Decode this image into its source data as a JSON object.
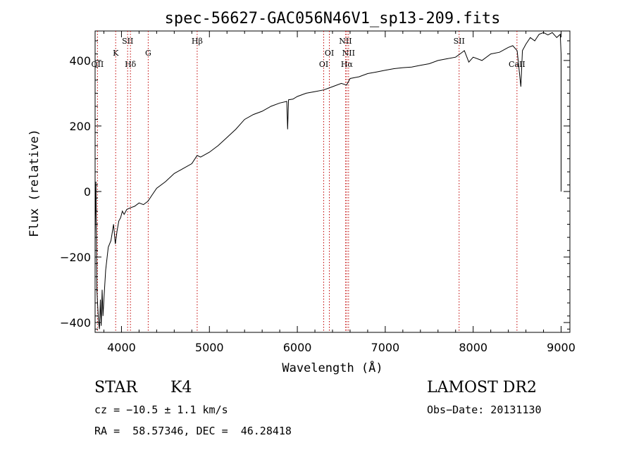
{
  "chart_data": {
    "type": "line",
    "title": "spec-56627-GAC056N46V1_sp13-209.fits",
    "xlabel": "Wavelength (Å)",
    "ylabel": "Flux (relative)",
    "xlim": [
      3700,
      9100
    ],
    "ylim": [
      -430,
      490
    ],
    "xticks": [
      4000,
      5000,
      6000,
      7000,
      8000,
      9000
    ],
    "yticks": [
      -400,
      -200,
      0,
      200,
      400
    ],
    "ytick_labels": [
      "−400",
      "−200",
      "0",
      "200",
      "400"
    ],
    "grid": false,
    "series": [
      {
        "x": [
          3700,
          3710,
          3720,
          3730,
          3740,
          3750,
          3760,
          3770,
          3780,
          3790,
          3800,
          3820,
          3850,
          3880,
          3910,
          3930,
          3950,
          3970,
          3990,
          4010,
          4030,
          4060,
          4100,
          4150,
          4200,
          4250,
          4300,
          4350,
          4400,
          4500,
          4600,
          4700,
          4800,
          4860,
          4900,
          5000,
          5100,
          5200,
          5300,
          5400,
          5500,
          5600,
          5700,
          5800,
          5880,
          5890,
          5900,
          5950,
          6000,
          6100,
          6200,
          6300,
          6400,
          6500,
          6560,
          6600,
          6700,
          6800,
          6900,
          7000,
          7100,
          7200,
          7300,
          7400,
          7500,
          7600,
          7700,
          7800,
          7850,
          7900,
          7950,
          8000,
          8100,
          8200,
          8300,
          8400,
          8450,
          8500,
          8542,
          8560,
          8600,
          8650,
          8700,
          8750,
          8800,
          8850,
          8900,
          8950,
          8990,
          9000,
          9000
        ],
        "y": [
          -130,
          30,
          -300,
          -350,
          -400,
          -420,
          -330,
          -410,
          -300,
          -380,
          -330,
          -240,
          -170,
          -150,
          -100,
          -160,
          -120,
          -90,
          -80,
          -60,
          -70,
          -55,
          -50,
          -45,
          -35,
          -40,
          -30,
          -10,
          10,
          30,
          55,
          70,
          85,
          110,
          105,
          120,
          140,
          165,
          190,
          220,
          235,
          245,
          260,
          270,
          275,
          190,
          280,
          282,
          290,
          300,
          305,
          310,
          320,
          330,
          325,
          345,
          350,
          360,
          365,
          370,
          375,
          378,
          380,
          385,
          390,
          400,
          405,
          410,
          420,
          430,
          395,
          410,
          400,
          420,
          425,
          440,
          445,
          430,
          320,
          430,
          450,
          470,
          460,
          480,
          485,
          478,
          485,
          470,
          480,
          420,
          0
        ]
      }
    ],
    "lines": [
      {
        "label": "OII",
        "x": 3727,
        "label_row": 3
      },
      {
        "label": "K",
        "x": 3934,
        "label_row": 2
      },
      {
        "label": "SII",
        "x": 4070,
        "label_row": 1
      },
      {
        "label": "Hδ",
        "x": 4102,
        "label_row": 3
      },
      {
        "label": "G",
        "x": 4304,
        "label_row": 2
      },
      {
        "label": "Hβ",
        "x": 4861,
        "label_row": 1
      },
      {
        "label": "OI",
        "x": 6300,
        "label_row": 3
      },
      {
        "label": "OI",
        "x": 6364,
        "label_row": 2
      },
      {
        "label": "NII",
        "x": 6548,
        "label_row": 1
      },
      {
        "label": "Hα",
        "x": 6563,
        "label_row": 3
      },
      {
        "label": "NII",
        "x": 6583,
        "label_row": 2
      },
      {
        "label": "SII",
        "x": 7840,
        "label_row": 1
      },
      {
        "label": "CaII",
        "x": 8498,
        "label_row": 3
      }
    ]
  },
  "info": {
    "class": "STAR",
    "subclass": "K4",
    "survey": "LAMOST DR2",
    "cz": "cz = −10.5 ± 1.1 km/s",
    "obs_date": "Obs−Date: 20131130",
    "coords": "RA =  58.57346, DEC =  46.28418"
  }
}
